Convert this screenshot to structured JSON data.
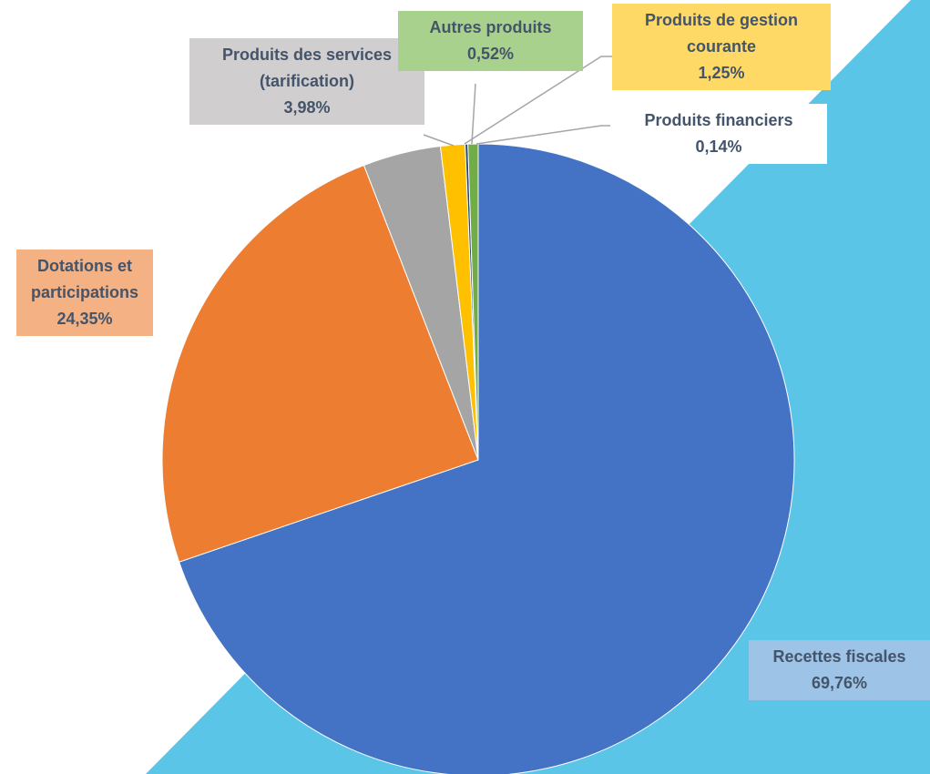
{
  "chart_data": {
    "type": "pie",
    "categories": [
      "Recettes fiscales",
      "Dotations et participations",
      "Produits des services (tarification)",
      "Produits de gestion courante",
      "Produits financiers",
      "Autres  produits"
    ],
    "values": [
      69.76,
      24.35,
      3.98,
      1.25,
      0.14,
      0.52
    ],
    "value_labels": [
      "69,76%",
      "24,35%",
      "3,98%",
      "1,25%",
      "0,14%",
      "0,52%"
    ],
    "colors": [
      "#4472c4",
      "#ed7d31",
      "#a5a5a5",
      "#ffc000",
      "#264478",
      "#70ad47"
    ]
  }
}
